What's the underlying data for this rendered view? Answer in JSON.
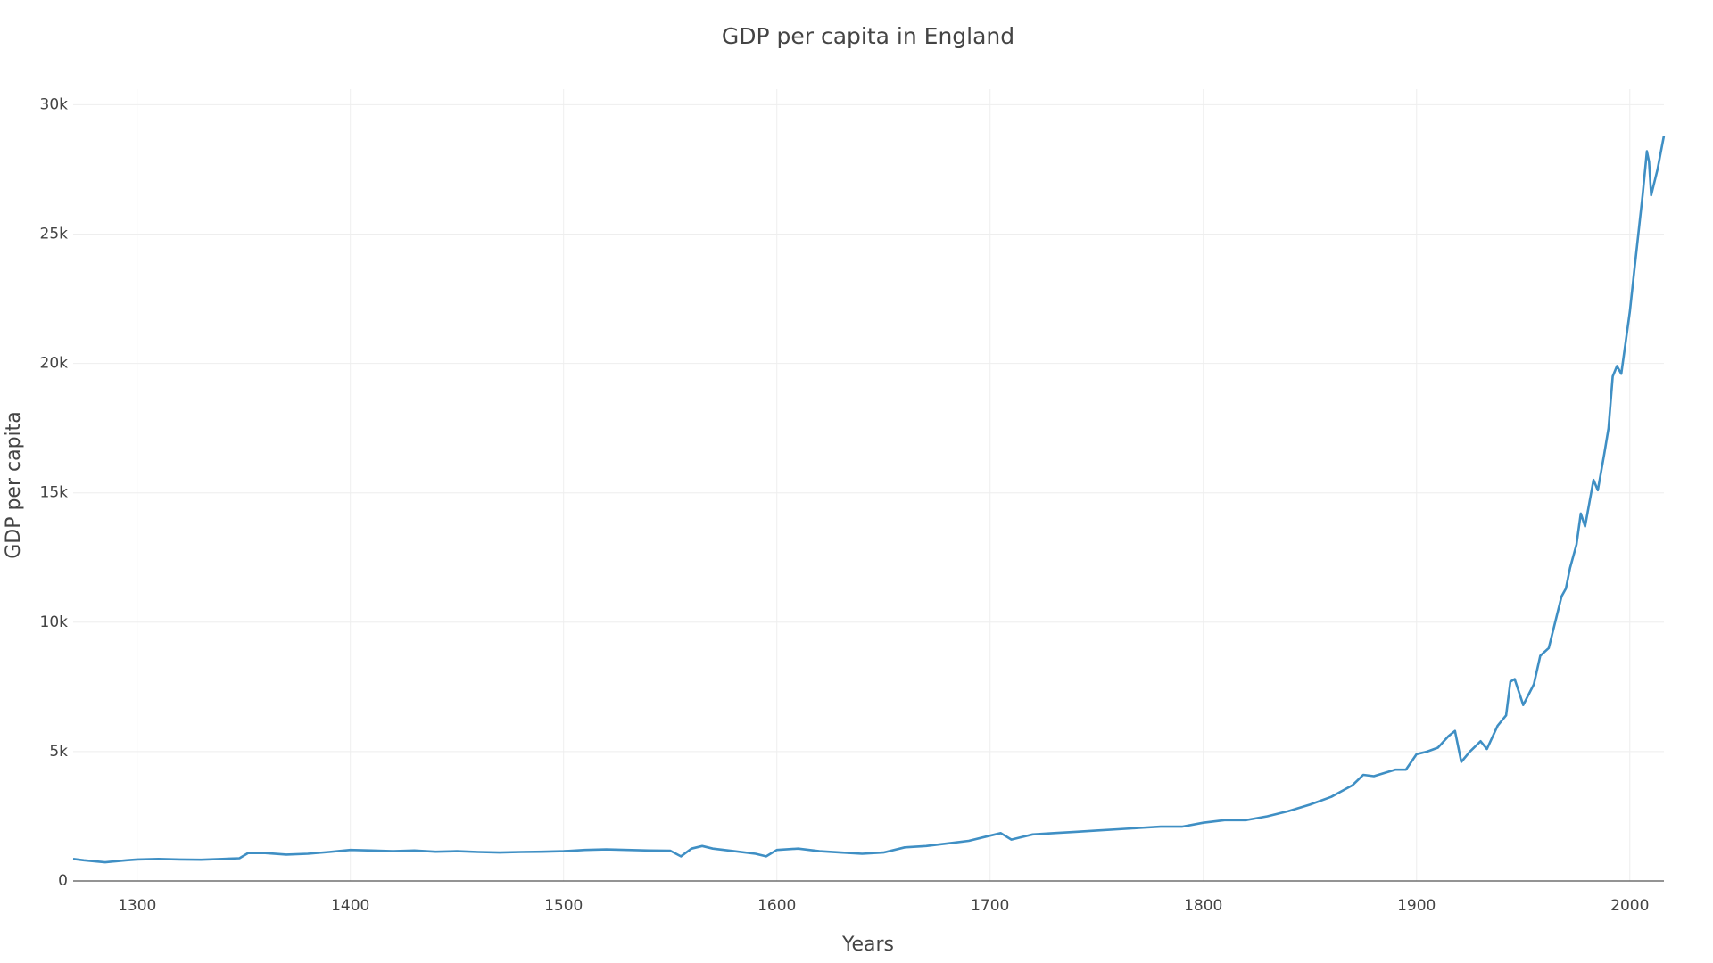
{
  "chart_data": {
    "type": "line",
    "title": "GDP per capita in England",
    "x_label": "Years",
    "y_label": "GDP per capita",
    "x": [
      1270,
      1275,
      1280,
      1285,
      1290,
      1295,
      1300,
      1310,
      1320,
      1330,
      1340,
      1348,
      1352,
      1360,
      1370,
      1380,
      1390,
      1400,
      1410,
      1420,
      1430,
      1440,
      1450,
      1460,
      1470,
      1480,
      1490,
      1500,
      1510,
      1520,
      1530,
      1540,
      1550,
      1555,
      1560,
      1565,
      1570,
      1580,
      1590,
      1595,
      1600,
      1610,
      1620,
      1630,
      1640,
      1650,
      1660,
      1670,
      1680,
      1690,
      1700,
      1705,
      1710,
      1720,
      1730,
      1740,
      1750,
      1760,
      1770,
      1780,
      1790,
      1800,
      1810,
      1820,
      1830,
      1840,
      1850,
      1860,
      1870,
      1875,
      1880,
      1890,
      1895,
      1900,
      1905,
      1910,
      1915,
      1918,
      1921,
      1925,
      1930,
      1933,
      1938,
      1942,
      1944,
      1946,
      1950,
      1955,
      1958,
      1962,
      1965,
      1968,
      1970,
      1972,
      1975,
      1977,
      1979,
      1983,
      1985,
      1988,
      1990,
      1992,
      1994,
      1996,
      1998,
      2000,
      2002,
      2004,
      2006,
      2008,
      2009,
      2010,
      2013,
      2016
    ],
    "values": [
      850,
      800,
      760,
      720,
      760,
      800,
      830,
      850,
      830,
      820,
      850,
      880,
      1080,
      1080,
      1020,
      1050,
      1120,
      1200,
      1180,
      1150,
      1180,
      1130,
      1150,
      1120,
      1100,
      1120,
      1130,
      1150,
      1200,
      1220,
      1200,
      1180,
      1170,
      950,
      1250,
      1350,
      1250,
      1150,
      1050,
      950,
      1200,
      1250,
      1150,
      1100,
      1050,
      1100,
      1300,
      1350,
      1450,
      1550,
      1750,
      1850,
      1600,
      1800,
      1850,
      1900,
      1950,
      2000,
      2050,
      2100,
      2100,
      2250,
      2350,
      2350,
      2500,
      2700,
      2950,
      3250,
      3700,
      4100,
      4050,
      4300,
      4300,
      4900,
      5000,
      5150,
      5600,
      5800,
      4600,
      5000,
      5400,
      5100,
      6000,
      6400,
      7700,
      7800,
      6800,
      7600,
      8700,
      9000,
      10000,
      11000,
      11300,
      12100,
      13000,
      14200,
      13700,
      15500,
      15100,
      16500,
      17500,
      19500,
      19900,
      19600,
      20800,
      22000,
      23500,
      25000,
      26500,
      28200,
      27800,
      26500,
      27500,
      28800
    ],
    "color": "#3f8fc4",
    "xlim": [
      1270,
      2016
    ],
    "xticks": [
      1300,
      1400,
      1500,
      1600,
      1700,
      1800,
      1900,
      2000
    ],
    "ylim": [
      0,
      30600
    ],
    "yticks": [
      0,
      {
        "value": 5000,
        "label": "5k"
      },
      {
        "value": 10000,
        "label": "10k"
      },
      {
        "value": 15000,
        "label": "15k"
      },
      {
        "value": 20000,
        "label": "20k"
      },
      {
        "value": 25000,
        "label": "25k"
      },
      {
        "value": 30000,
        "label": "30k"
      }
    ],
    "grid": true
  }
}
